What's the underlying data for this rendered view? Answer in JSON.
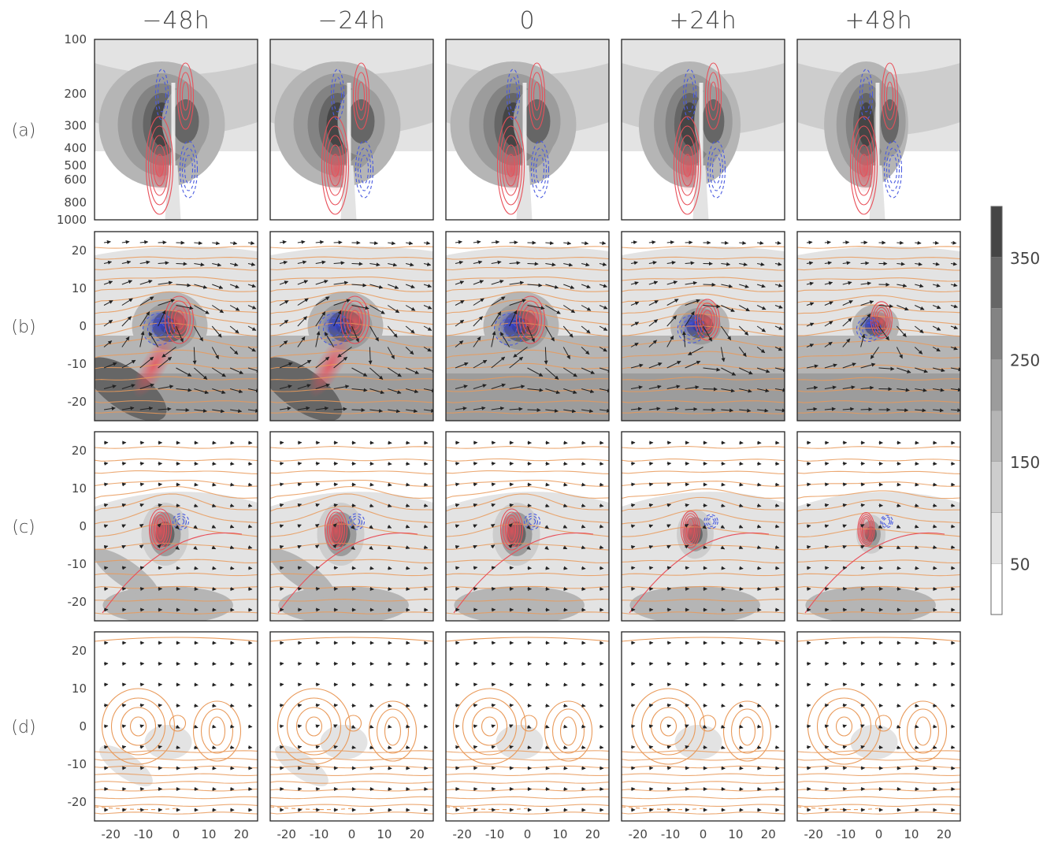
{
  "chart_data": {
    "type": "panel-grid",
    "columns": [
      "−48h",
      "−24h",
      "0",
      "+24h",
      "+48h"
    ],
    "rows": [
      "(a)",
      "(b)",
      "(c)",
      "(d)"
    ],
    "row_a_yaxis": {
      "scale": "log",
      "ticks": [
        100,
        200,
        300,
        400,
        500,
        600,
        800,
        1000
      ],
      "range": [
        1000,
        100
      ]
    },
    "row_bcd_yaxis": {
      "ticks": [
        20,
        10,
        0,
        -10,
        -20
      ],
      "range": [
        -25,
        25
      ]
    },
    "xaxis": {
      "ticks": [
        -20,
        -10,
        0,
        10,
        20
      ],
      "range": [
        -25,
        25
      ]
    },
    "colorbar": {
      "ticks": [
        50,
        150,
        250,
        350
      ],
      "levels": [
        0,
        50,
        100,
        150,
        200,
        250,
        300,
        350,
        400
      ],
      "colors": [
        "#ffffff",
        "#e3e3e3",
        "#cdcdcd",
        "#b5b5b5",
        "#9c9c9c",
        "#838383",
        "#666666",
        "#454545"
      ]
    },
    "contour_colors": {
      "positive": "#e8505a",
      "negative": "#4a5be0",
      "streamline": "#e99a5a",
      "vector": "#222222"
    },
    "column_shift": [
      0,
      0,
      0,
      1,
      2
    ],
    "column_strength": [
      1.0,
      1.0,
      1.0,
      0.78,
      0.62
    ]
  }
}
